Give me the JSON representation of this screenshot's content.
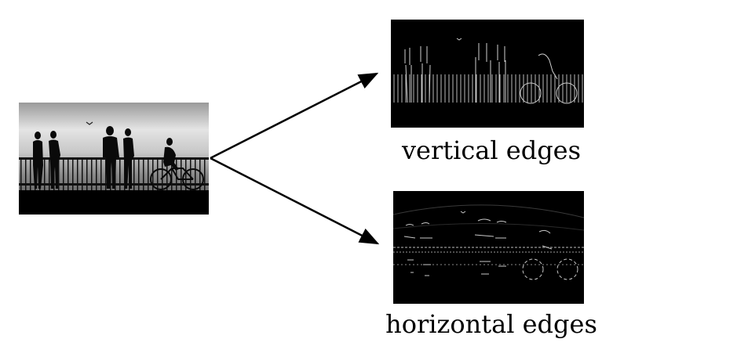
{
  "figure": {
    "source": {
      "name": "silhouette-photo"
    },
    "outputs": [
      {
        "id": "vertical",
        "caption": "vertical edges"
      },
      {
        "id": "horizontal",
        "caption": "horizontal edges"
      }
    ]
  },
  "colors": {
    "background": "#ffffff",
    "arrow": "#000000",
    "edge_stroke": "#bdbdbd"
  }
}
